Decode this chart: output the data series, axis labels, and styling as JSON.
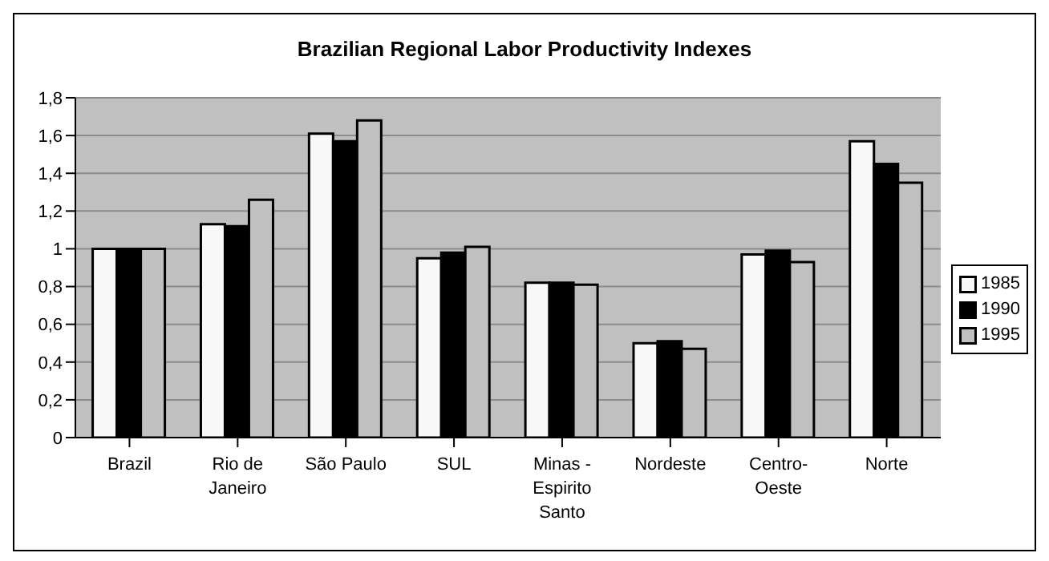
{
  "chart_data": {
    "type": "bar",
    "title": "Brazilian Regional Labor Productivity Indexes",
    "categories": [
      "Brazil",
      "Rio de Janeiro",
      "São Paulo",
      "SUL",
      "Minas - Espirito Santo",
      "Nordeste",
      "Centro-Oeste",
      "Norte"
    ],
    "series": [
      {
        "name": "1985",
        "color": "#f8f8f8",
        "values": [
          1,
          1.13,
          1.61,
          0.95,
          0.82,
          0.5,
          0.97,
          1.57
        ]
      },
      {
        "name": "1990",
        "color": "#000000",
        "values": [
          1,
          1.12,
          1.57,
          0.98,
          0.82,
          0.51,
          0.99,
          1.45
        ]
      },
      {
        "name": "1995",
        "color": "#c0c0c0",
        "values": [
          1,
          1.26,
          1.68,
          1.01,
          0.81,
          0.47,
          0.93,
          1.35
        ]
      }
    ],
    "ylim": [
      0,
      1.8
    ],
    "yticks": [
      0,
      {
        "value": 0.2,
        "label": "0,2"
      },
      {
        "value": 0.4,
        "label": "0,4"
      },
      {
        "value": 0.6,
        "label": "0,6"
      },
      {
        "value": 0.8,
        "label": "0,8"
      },
      1,
      {
        "value": 1.2,
        "label": "1,2"
      },
      {
        "value": 1.4,
        "label": "1,4"
      },
      {
        "value": 1.6,
        "label": "1,6"
      },
      {
        "value": 1.8,
        "label": "1,8"
      }
    ],
    "grid": "y",
    "legend": "right"
  }
}
